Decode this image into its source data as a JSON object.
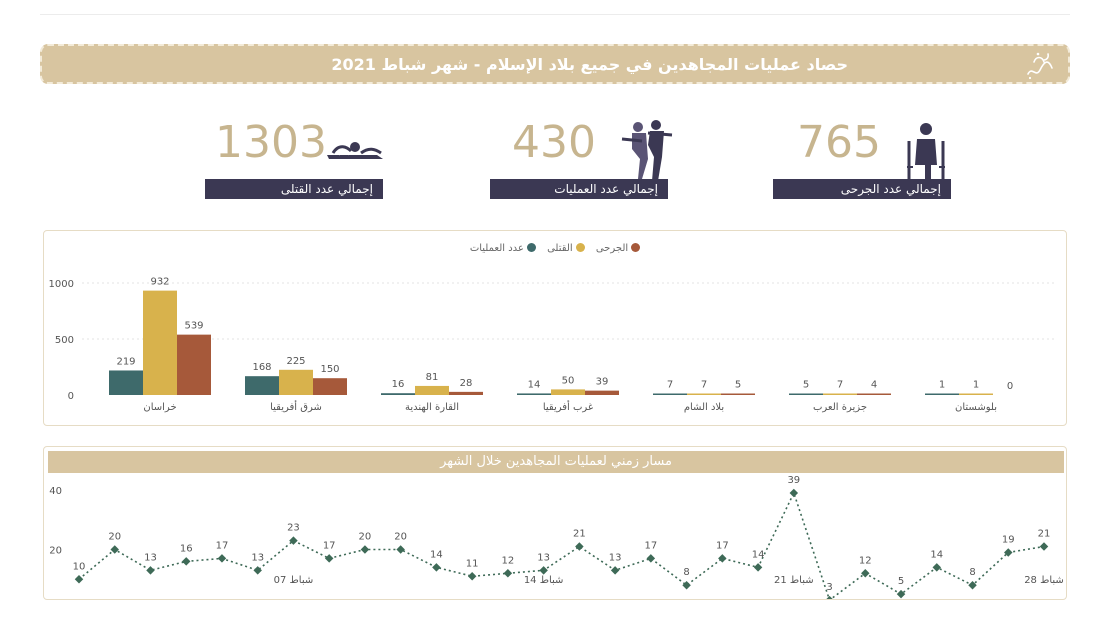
{
  "header": {
    "title": "حصاد عمليات المجاهدين في جميع بلاد الإسلام - شهر شباط 2021"
  },
  "stats": [
    {
      "value": "1303",
      "label": "إجمالي عدد القتلى",
      "icon": "fallen-body-icon"
    },
    {
      "value": "430",
      "label": "إجمالي عدد العمليات",
      "icon": "fighters-icon"
    },
    {
      "value": "765",
      "label": "إجمالي عدد الجرحى",
      "icon": "crutches-person-icon"
    }
  ],
  "colors": {
    "accent": "#d8c5a0",
    "dark": "#3b3853",
    "operations": "#3e6a6b",
    "killed": "#d8b24c",
    "wounded": "#a6593a",
    "line": "#3e6a57"
  },
  "chart_data": [
    {
      "type": "bar",
      "legend": [
        "الجرحى",
        "القتلى",
        "عدد العمليات"
      ],
      "categories": [
        "خراسان",
        "شرق أفريقيا",
        "القارة الهندية",
        "غرب أفريقيا",
        "بلاد الشام",
        "جزيرة العرب",
        "بلوشستان"
      ],
      "series": [
        {
          "name": "عدد العمليات",
          "values": [
            219,
            168,
            16,
            14,
            7,
            5,
            1
          ]
        },
        {
          "name": "القتلى",
          "values": [
            932,
            225,
            81,
            50,
            7,
            7,
            1
          ]
        },
        {
          "name": "الجرحى",
          "values": [
            539,
            150,
            28,
            39,
            5,
            4,
            0
          ]
        }
      ],
      "yticks": [
        0,
        500,
        1000
      ],
      "ylim": [
        0,
        1000
      ],
      "grid": true,
      "legend_position": "top-center"
    },
    {
      "type": "line",
      "title": "مسار زمني لعمليات المجاهدين خلال الشهر",
      "x": [
        1,
        2,
        3,
        4,
        5,
        6,
        7,
        8,
        9,
        10,
        11,
        12,
        13,
        14,
        15,
        16,
        17,
        18,
        19,
        20,
        21,
        22,
        23,
        24,
        25,
        26,
        27,
        28
      ],
      "values": [
        10,
        20,
        13,
        16,
        17,
        13,
        23,
        17,
        20,
        20,
        14,
        11,
        12,
        13,
        21,
        13,
        17,
        8,
        17,
        14,
        39,
        3,
        12,
        5,
        14,
        8,
        19,
        21
      ],
      "xticks": [
        "شباط 07",
        "شباط 14",
        "شباط 21",
        "شباط 28"
      ],
      "yticks": [
        "20",
        "40"
      ],
      "ylim": [
        0,
        40
      ]
    }
  ]
}
